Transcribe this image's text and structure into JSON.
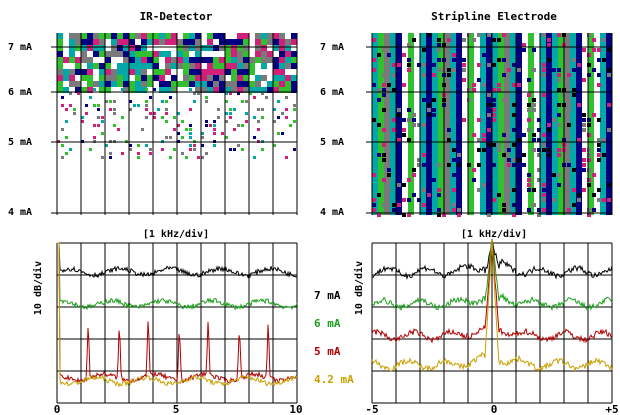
{
  "titles": {
    "left": "IR-Detector",
    "right": "Stripline Electrode"
  },
  "bottom_label": "[1 kHz/div]",
  "ylabel": "10 dB/div",
  "ma_ticks": [
    "7 mA",
    "6 mA",
    "5 mA",
    "4 mA"
  ],
  "colors": {
    "black": "#000000",
    "green": "#1b9e1b",
    "red": "#b00000",
    "gold": "#c8a000",
    "teal": "#00a8a8",
    "navy": "#000080",
    "gray": "#7a7a7a",
    "magenta": "#d0207a"
  },
  "chart_data": [
    {
      "type": "line",
      "panel": "IR-Detector spectrum",
      "xlabel": "[1 kHz/div]",
      "ylabel": "10 dB/div",
      "xlim": [
        0,
        10
      ],
      "xticks": [
        "0",
        "5",
        "10"
      ],
      "series": [
        {
          "label_ref": "7 mA",
          "color": "#000000",
          "base": -0.9,
          "peak": 0
        },
        {
          "label_ref": "6 mA",
          "color": "#1b9e1b",
          "base": -1.9,
          "peak": 0
        },
        {
          "label_ref": "5 mA",
          "color": "#b00000",
          "base": -4.2,
          "peak": 2.8,
          "peaks_khz": [
            1.3,
            2.6,
            3.8,
            5.1,
            6.3,
            7.6,
            8.8
          ]
        },
        {
          "label_ref": "4.2 mA",
          "color": "#c8a000",
          "base": -4.3,
          "peak": 0
        }
      ]
    },
    {
      "type": "line",
      "panel": "Stripline Electrode spectrum",
      "xlabel": "[1 kHz/div]",
      "ylabel": "10 dB/div",
      "xlim": [
        -5,
        5
      ],
      "xticks": [
        "-5",
        "0",
        "+5"
      ],
      "series": [
        {
          "name": "7 mA",
          "color": "#000000",
          "level": -0.9
        },
        {
          "name": "6 mA",
          "color": "#1b9e1b",
          "level": -1.9
        },
        {
          "name": "5 mA",
          "color": "#b00000",
          "level": -2.9
        },
        {
          "name": "4.2 mA",
          "color": "#c8a000",
          "level": -3.8
        }
      ]
    }
  ]
}
